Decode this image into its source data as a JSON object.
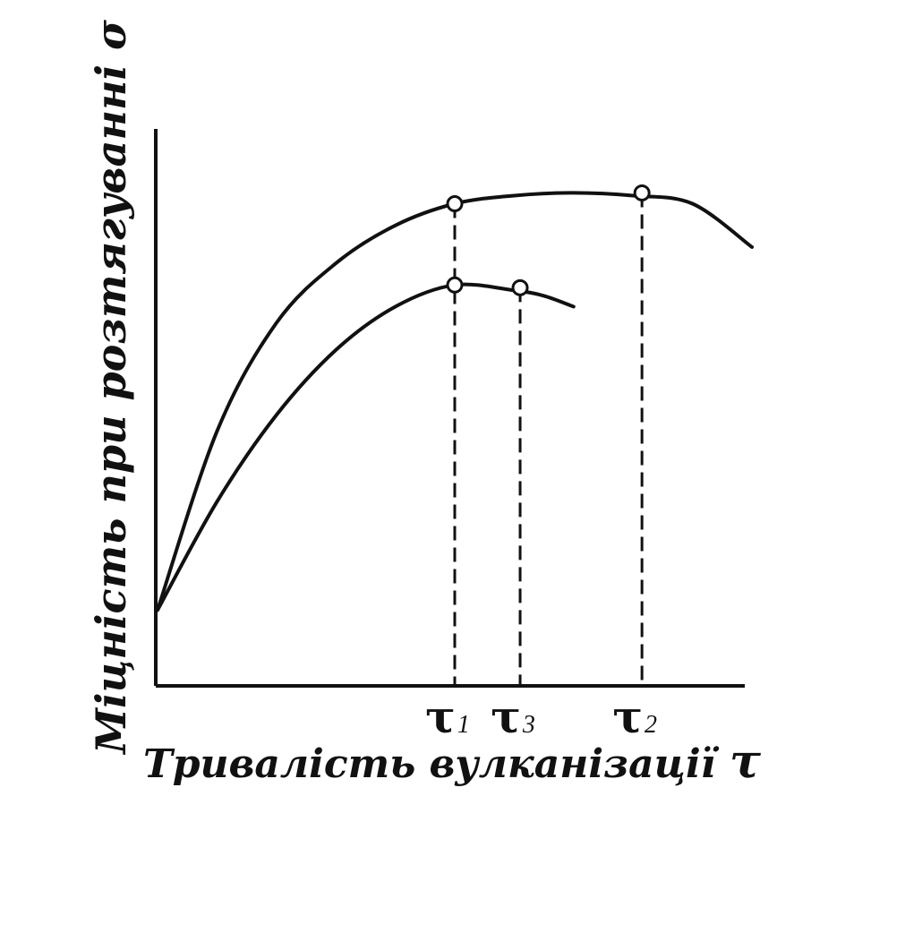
{
  "chart_data": {
    "type": "line",
    "xlabel": {
      "text": "Тривалість вулканізації",
      "symbol": "τ"
    },
    "ylabel": "Міцність при розтягуванні σ",
    "xlim": [
      0,
      100
    ],
    "ylim": [
      0,
      100
    ],
    "grid": false,
    "series": [
      {
        "x": [
          0,
          10,
          20,
          30,
          40,
          50,
          60,
          70,
          80,
          90,
          100
        ],
        "y": [
          14,
          47,
          67,
          78,
          85,
          89,
          90.5,
          91,
          90.5,
          89,
          81
        ]
      },
      {
        "x": [
          0,
          10,
          20,
          30,
          40,
          50,
          60,
          65,
          70
        ],
        "y": [
          14,
          34,
          50,
          62,
          70,
          74,
          73,
          72,
          70
        ]
      }
    ],
    "points": [
      {
        "x": 50,
        "y": 89
      },
      {
        "x": 81.5,
        "y": 91
      },
      {
        "x": 50,
        "y": 74
      },
      {
        "x": 61,
        "y": 73.5
      }
    ],
    "xticks": [
      {
        "x": 50,
        "main": "τ",
        "sub": "1"
      },
      {
        "x": 61,
        "main": "τ",
        "sub": "3"
      },
      {
        "x": 81.5,
        "main": "τ",
        "sub": "2"
      }
    ]
  }
}
